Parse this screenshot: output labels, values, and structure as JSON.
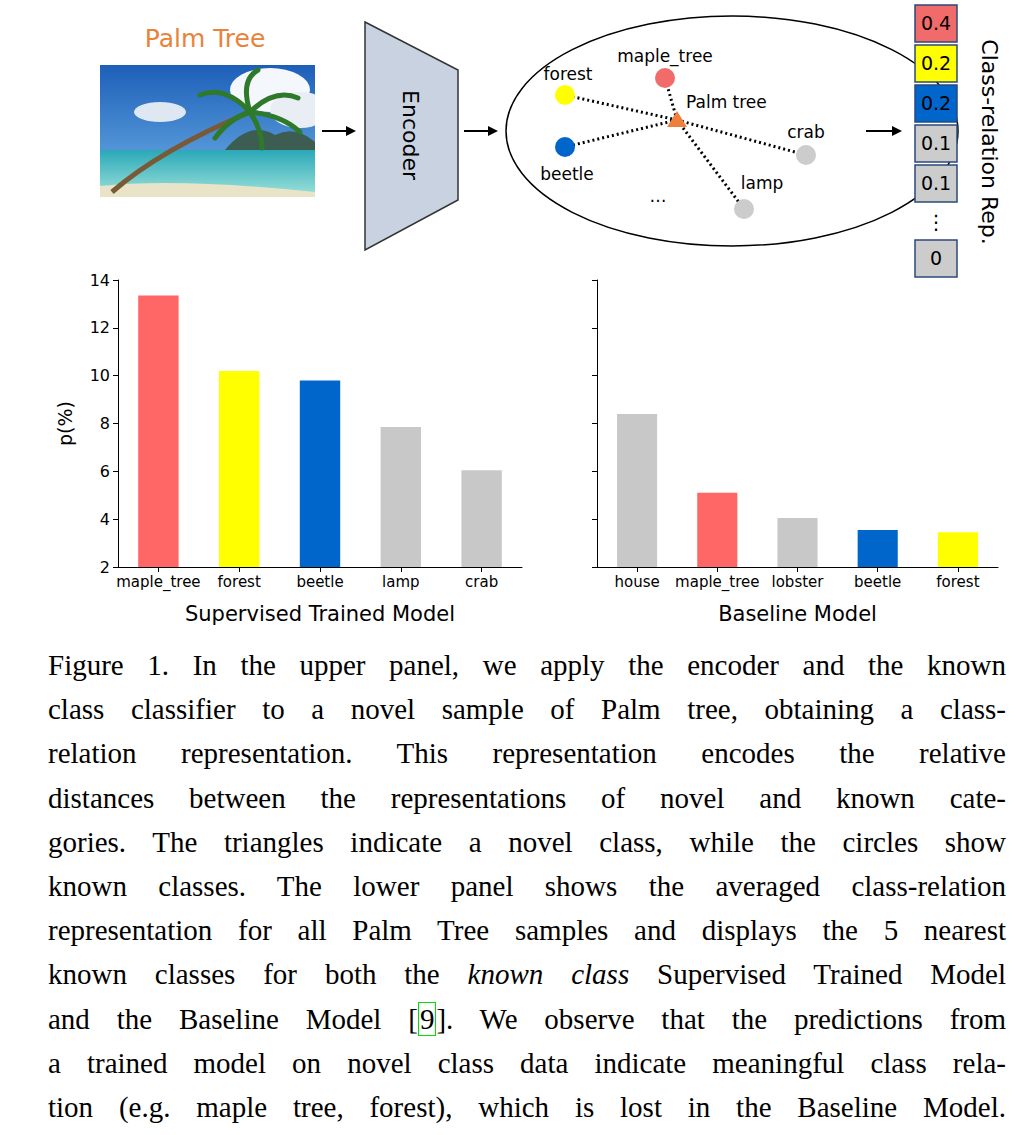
{
  "diagram": {
    "input": {
      "label": "Palm Tree",
      "color": "#e8833a"
    },
    "encoder": {
      "label": "Encoder"
    },
    "embedding": {
      "novel": {
        "label": "Palm tree",
        "color": "#f07f3c"
      },
      "known": [
        {
          "label": "maple_tree",
          "color": "#f26b6b"
        },
        {
          "label": "forest",
          "color": "#ffff00"
        },
        {
          "label": "beetle",
          "color": "#0066cc"
        },
        {
          "label": "crab",
          "color": "#cccccc"
        },
        {
          "label": "lamp",
          "color": "#cccccc"
        }
      ],
      "more": "…"
    },
    "representation": {
      "label": "Class-relation Rep.",
      "cells": [
        {
          "value": 0.4,
          "color": "#f26b6b"
        },
        {
          "value": 0.2,
          "color": "#ffff00"
        },
        {
          "value": 0.2,
          "color": "#0066cc"
        },
        {
          "value": 0.1,
          "color": "#cccccc"
        },
        {
          "value": 0.1,
          "color": "#cccccc"
        },
        {
          "label": "⋮"
        },
        {
          "value": 0,
          "color": "#cccccc"
        }
      ]
    }
  },
  "chart_data": [
    {
      "type": "bar",
      "x_label": "Supervised Trained Model",
      "y_label": "p(%)",
      "categories": [
        "maple_tree",
        "forest",
        "beetle",
        "lamp",
        "crab"
      ],
      "values": [
        13.35,
        10.2,
        9.8,
        7.85,
        6.05
      ],
      "colors": [
        "#ff6666",
        "#ffff00",
        "#0066cc",
        "#c8c8c8",
        "#c8c8c8"
      ],
      "ylim": [
        2,
        14
      ],
      "yticks": [
        2,
        4,
        6,
        8,
        10,
        12,
        14
      ],
      "grid": false
    },
    {
      "type": "bar",
      "x_label": "Baseline Model",
      "categories": [
        "house",
        "maple_tree",
        "lobster",
        "beetle",
        "forest"
      ],
      "values": [
        8.4,
        5.1,
        4.05,
        3.55,
        3.45
      ],
      "colors": [
        "#c8c8c8",
        "#ff6666",
        "#c8c8c8",
        "#0066cc",
        "#ffff00"
      ],
      "ylim": [
        2,
        14
      ],
      "yticks": [
        2,
        4,
        6,
        8,
        10,
        12,
        14
      ],
      "grid": false,
      "tick_labels": "x"
    }
  ],
  "caption": {
    "lines": [
      [
        "Figure 1. In the upper panel, we apply the encoder and the known"
      ],
      [
        "class classifier to a novel sample of Palm tree, obtaining a class-"
      ],
      [
        "relation representation.  This representation encodes the relative"
      ],
      [
        "distances between the representations of novel and known cate-"
      ],
      [
        "gories. The triangles indicate a novel class, while the circles show"
      ],
      [
        "known classes. The lower panel shows the averaged class-relation"
      ],
      [
        "representation for all Palm Tree samples and displays the 5 nearest"
      ],
      [
        "known classes for both the ",
        {
          "text": "known class",
          "italic": true
        },
        " Supervised Trained Model"
      ],
      [
        "and the Baseline Model [",
        {
          "text": "9",
          "cite": true
        },
        "]. We observe that the predictions from"
      ],
      [
        "a trained model on novel class data indicate meaningful class rela-"
      ],
      [
        "tion (e.g. maple tree, forest), which is lost in the Baseline Model."
      ]
    ]
  }
}
